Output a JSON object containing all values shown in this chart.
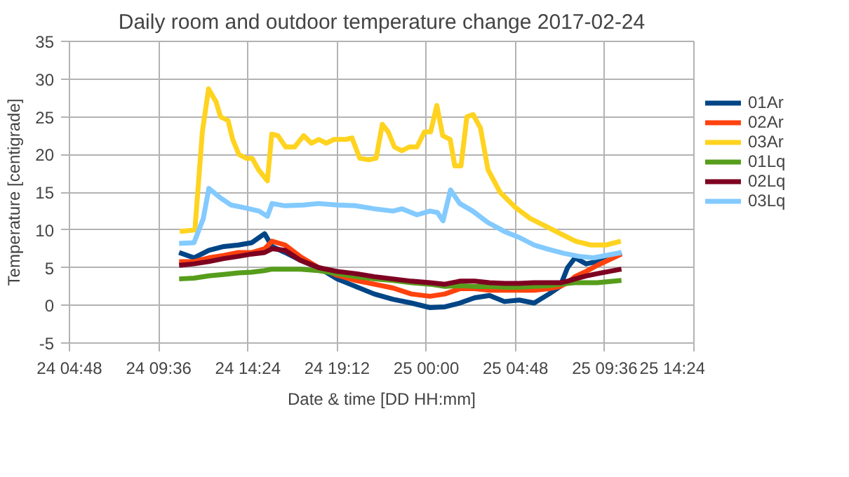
{
  "chart_data": {
    "type": "line",
    "title": "Daily room and outdoor temperature change 2017-02-24",
    "xlabel": "Date & time [DD HH:mm]",
    "ylabel": "Temperature [centigrade]",
    "x": [
      "2017-02-24T10:42",
      "2017-02-24T11:30",
      "2017-02-24T12:18",
      "2017-02-24T13:06",
      "2017-02-24T13:54",
      "2017-02-24T14:36",
      "2017-02-24T15:18",
      "2017-02-24T15:42",
      "2017-02-24T16:24",
      "2017-02-24T17:12",
      "2017-02-24T18:12",
      "2017-02-24T19:12",
      "2017-02-24T20:12",
      "2017-02-24T21:12",
      "2017-02-24T22:12",
      "2017-02-24T23:12",
      "2017-02-25T00:12",
      "2017-02-25T01:00",
      "2017-02-25T01:48",
      "2017-02-25T02:36",
      "2017-02-25T03:24",
      "2017-02-25T04:12",
      "2017-02-25T05:00",
      "2017-02-25T05:48",
      "2017-02-25T06:36",
      "2017-02-25T07:12",
      "2017-02-25T07:36",
      "2017-02-25T08:00",
      "2017-02-25T08:36",
      "2017-02-25T09:12",
      "2017-02-25T10:30"
    ],
    "xlim": [
      "2017-02-24T04:48",
      "2017-02-25T14:24"
    ],
    "xticks": [
      {
        "value": "2017-02-24T04:48",
        "label": "24 04:48"
      },
      {
        "value": "2017-02-24T09:36",
        "label": "24 09:36"
      },
      {
        "value": "2017-02-24T14:24",
        "label": "24 14:24"
      },
      {
        "value": "2017-02-24T19:12",
        "label": "24 19:12"
      },
      {
        "value": "2017-02-25T00:00",
        "label": "25 00:00"
      },
      {
        "value": "2017-02-25T04:48",
        "label": "25 04:48"
      },
      {
        "value": "2017-02-25T09:36",
        "label": "25 09:36"
      },
      {
        "value": "2017-02-25T14:24",
        "label": "25 14:24"
      }
    ],
    "ylim": [
      -5,
      35
    ],
    "yticks": [
      -5,
      0,
      5,
      10,
      15,
      20,
      25,
      30,
      35
    ],
    "grid": true,
    "legend": "right",
    "line_style": "solid",
    "series": [
      {
        "name": "01Ar",
        "color": "#004586",
        "values": [
          7,
          6.3,
          7.3,
          7.8,
          8,
          8.3,
          9.5,
          7.8,
          7,
          6,
          5,
          3.5,
          2.5,
          1.5,
          0.8,
          0.3,
          -0.3,
          -0.2,
          0.3,
          1,
          1.3,
          0.5,
          0.7,
          0.3,
          1.5,
          2.5,
          5,
          6.3,
          5.5,
          5.8,
          7
        ]
      },
      {
        "name": "02Ar",
        "color": "#ff420e",
        "values": [
          5.8,
          5.8,
          6.3,
          6.6,
          7,
          7,
          7.5,
          8.5,
          8,
          6.5,
          5,
          4,
          3.3,
          2.8,
          2.3,
          1.5,
          1.2,
          1.5,
          2.2,
          2.2,
          2,
          2,
          2,
          2,
          2.2,
          2.5,
          3,
          3.8,
          4.5,
          5.3,
          6.8
        ]
      },
      {
        "name": "03Ar",
        "color": "#ffd320",
        "x": [
          "2017-02-24T10:44",
          "2017-02-24T11:33",
          "2017-02-24T11:57",
          "2017-02-24T12:17",
          "2017-02-24T12:41",
          "2017-02-24T12:56",
          "2017-02-24T13:20",
          "2017-02-24T13:35",
          "2017-02-24T13:55",
          "2017-02-24T14:19",
          "2017-02-24T14:38",
          "2017-02-24T14:58",
          "2017-02-24T15:27",
          "2017-02-24T15:41",
          "2017-02-24T16:01",
          "2017-02-24T16:26",
          "2017-02-24T16:55",
          "2017-02-24T17:24",
          "2017-02-24T17:49",
          "2017-02-24T18:13",
          "2017-02-24T18:37",
          "2017-02-24T19:02",
          "2017-02-24T19:41",
          "2017-02-24T20:00",
          "2017-02-24T20:25",
          "2017-02-24T20:54",
          "2017-02-24T21:18",
          "2017-02-24T21:38",
          "2017-02-24T21:57",
          "2017-02-24T22:17",
          "2017-02-24T22:41",
          "2017-02-24T23:05",
          "2017-02-24T23:30",
          "2017-02-24T23:54",
          "2017-02-25T00:14",
          "2017-02-25T00:34",
          "2017-02-25T00:53",
          "2017-02-25T01:17",
          "2017-02-25T01:32",
          "2017-02-25T01:52",
          "2017-02-25T02:11",
          "2017-02-25T02:31",
          "2017-02-25T02:55",
          "2017-02-25T03:19",
          "2017-02-25T03:58",
          "2017-02-25T04:47",
          "2017-02-25T05:36",
          "2017-02-25T06:25",
          "2017-02-25T07:13",
          "2017-02-25T08:02",
          "2017-02-25T08:51",
          "2017-02-25T09:40",
          "2017-02-25T10:28"
        ],
        "values": [
          9.8,
          10,
          23,
          28.7,
          27,
          25,
          24.5,
          22,
          20,
          19.5,
          19.5,
          18,
          16.5,
          22.7,
          22.5,
          21,
          21,
          22.5,
          21.5,
          22,
          21.5,
          22,
          22,
          22.2,
          19.5,
          19.3,
          19.5,
          24,
          23,
          21,
          20.5,
          21,
          21,
          23,
          23,
          26.5,
          22.5,
          22,
          18.5,
          18.5,
          25,
          25.3,
          23.5,
          18,
          15,
          13,
          11.5,
          10.5,
          9.5,
          8.5,
          8,
          8,
          8.5
        ]
      },
      {
        "name": "01Lq",
        "color": "#579d1c",
        "values": [
          3.5,
          3.6,
          3.9,
          4.1,
          4.3,
          4.4,
          4.6,
          4.8,
          4.8,
          4.8,
          4.6,
          4.2,
          3.8,
          3.5,
          3.3,
          3,
          2.8,
          2.5,
          2.6,
          2.5,
          2.5,
          2.4,
          2.4,
          2.5,
          2.6,
          2.8,
          2.9,
          3,
          3,
          3,
          3.3
        ]
      },
      {
        "name": "02Lq",
        "color": "#7e0021",
        "values": [
          5.3,
          5.5,
          5.8,
          6.2,
          6.5,
          6.8,
          7,
          7.5,
          7.3,
          6,
          5,
          4.5,
          4.2,
          3.8,
          3.5,
          3.2,
          3,
          2.8,
          3.2,
          3.2,
          3,
          2.9,
          2.9,
          3,
          3,
          3,
          3.2,
          3.5,
          3.9,
          4.2,
          4.8
        ]
      },
      {
        "name": "03Lq",
        "color": "#83caff",
        "x": [
          "2017-02-24T10:42",
          "2017-02-24T11:30",
          "2017-02-24T12:00",
          "2017-02-24T12:18",
          "2017-02-24T12:54",
          "2017-02-24T13:30",
          "2017-02-24T14:18",
          "2017-02-24T15:00",
          "2017-02-24T15:27",
          "2017-02-24T15:42",
          "2017-02-24T16:24",
          "2017-02-24T17:24",
          "2017-02-24T18:12",
          "2017-02-24T19:12",
          "2017-02-24T20:12",
          "2017-02-24T21:12",
          "2017-02-24T22:12",
          "2017-02-24T22:42",
          "2017-02-24T23:30",
          "2017-02-25T00:12",
          "2017-02-25T00:36",
          "2017-02-25T00:54",
          "2017-02-25T01:18",
          "2017-02-25T01:48",
          "2017-02-25T02:30",
          "2017-02-25T03:18",
          "2017-02-25T04:12",
          "2017-02-25T05:00",
          "2017-02-25T05:48",
          "2017-02-25T06:36",
          "2017-02-25T07:24",
          "2017-02-25T08:12",
          "2017-02-25T09:00",
          "2017-02-25T10:30"
        ],
        "values": [
          8.2,
          8.3,
          11.5,
          15.5,
          14.3,
          13.3,
          12.9,
          12.5,
          11.8,
          13.5,
          13.2,
          13.3,
          13.5,
          13.3,
          13.2,
          12.8,
          12.5,
          12.8,
          12,
          12.5,
          12.3,
          11.2,
          15.3,
          13.5,
          12.5,
          11,
          9.8,
          9,
          8,
          7.4,
          6.9,
          6.5,
          6.3,
          7
        ]
      }
    ]
  }
}
